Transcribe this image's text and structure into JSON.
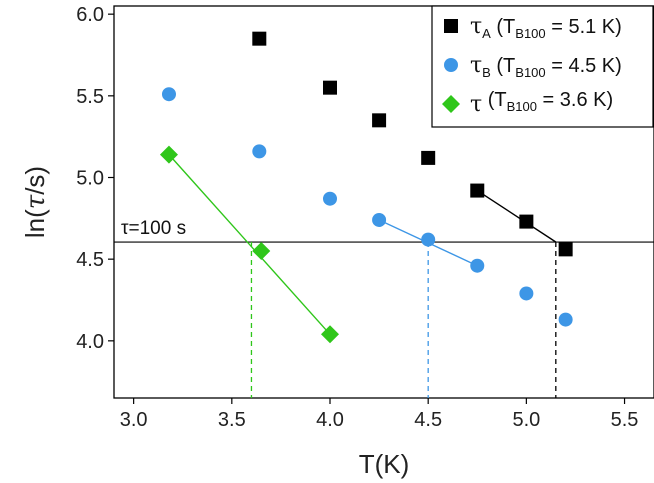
{
  "chart_data": {
    "type": "scatter",
    "xlabel": "T(K)",
    "ylabel_prefix": "ln(",
    "ylabel_symbol": "τ",
    "ylabel_suffix": "/s)",
    "xlim": [
      2.9,
      5.65
    ],
    "ylim": [
      3.65,
      6.05
    ],
    "x_ticks": [
      3.0,
      3.5,
      4.0,
      4.5,
      5.0,
      5.5
    ],
    "x_tick_labels": [
      "3.0",
      "3.5",
      "4.0",
      "4.5",
      "5.0",
      "5.5"
    ],
    "y_ticks": [
      4.0,
      4.5,
      5.0,
      5.5,
      6.0
    ],
    "y_tick_labels": [
      "4.0",
      "4.5",
      "5.0",
      "5.5",
      "6.0"
    ],
    "threshold": {
      "y": 4.605,
      "label": "τ=100 s"
    },
    "series": [
      {
        "name": "tauA",
        "marker": "square",
        "color": "#000000",
        "legend": {
          "symbol": "τ",
          "sub": "A",
          "text": " (T",
          "text_sub": "B100",
          "text_end": " = 5.1 K)"
        },
        "x": [
          3.64,
          4.0,
          4.25,
          4.5,
          4.75,
          5.0,
          5.2
        ],
        "y": [
          5.85,
          5.55,
          5.35,
          5.12,
          4.92,
          4.73,
          4.56
        ],
        "fit": {
          "x": [
            4.75,
            5.15
          ],
          "y": [
            4.92,
            4.605
          ]
        },
        "blocking_T": 5.15
      },
      {
        "name": "tauB",
        "marker": "circle",
        "color": "#3d96e6",
        "legend": {
          "symbol": "τ",
          "sub": "B",
          "text": " (T",
          "text_sub": "B100",
          "text_end": " = 4.5 K)"
        },
        "x": [
          3.18,
          3.64,
          4.0,
          4.25,
          4.5,
          4.75,
          5.0,
          5.2
        ],
        "y": [
          5.51,
          5.16,
          4.87,
          4.74,
          4.62,
          4.46,
          4.29,
          4.13
        ],
        "fit": {
          "x": [
            4.25,
            4.75
          ],
          "y": [
            4.74,
            4.46
          ]
        },
        "blocking_T": 4.5
      },
      {
        "name": "tau",
        "marker": "diamond",
        "color": "#2fc61a",
        "legend": {
          "symbol": "τ",
          "sub": "",
          "text": "  (T",
          "text_sub": "B100",
          "text_end": " = 3.6 K)"
        },
        "x": [
          3.18,
          3.65,
          4.0
        ],
        "y": [
          5.14,
          4.55,
          4.04
        ],
        "fit": {
          "x": [
            3.18,
            4.0
          ],
          "y": [
            5.14,
            4.04
          ]
        },
        "blocking_T": 3.6
      }
    ]
  }
}
